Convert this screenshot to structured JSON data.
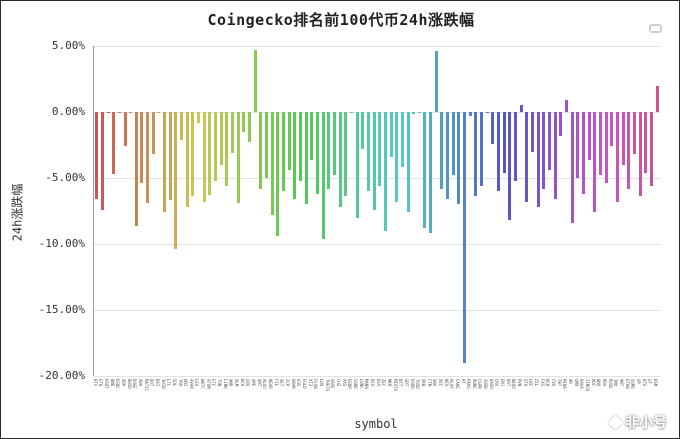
{
  "watermark": {
    "text": "非小号"
  },
  "legend": {
    "items": [
      ""
    ]
  },
  "chart_data": {
    "type": "bar",
    "title": "Coingecko排名前100代币24h涨跌幅",
    "xlabel": "symbol",
    "ylabel": "24h涨跌幅",
    "ylim": [
      -20,
      5
    ],
    "grid": true,
    "legend_position": "top-right",
    "palette": "rainbow hue 0-330 across 100 bars",
    "y_ticks": [
      "5.00%",
      "0.00%",
      "-5.00%",
      "-10.00%",
      "-15.00%",
      "-20.00%"
    ],
    "categories": [
      "BTC",
      "ETH",
      "USDT",
      "BNB",
      "USDC",
      "XRP",
      "BUSD",
      "DOGE",
      "ADA",
      "MATIC",
      "DOT",
      "DAI",
      "SHIB",
      "LTC",
      "SOL",
      "TRX",
      "UNI",
      "AVAX",
      "LEO",
      "WBTC",
      "ATOM",
      "ETC",
      "TON",
      "LINK",
      "XMR",
      "XLM",
      "BCH",
      "CRO",
      "APE",
      "QNT",
      "ALGO",
      "NEAR",
      "FIL",
      "VET",
      "ICP",
      "HBAR",
      "EOS",
      "EGLD",
      "XTZ",
      "FLOW",
      "LDO",
      "THETA",
      "AAVE",
      "CHZ",
      "AXS",
      "USDP",
      "SAND",
      "LUNC",
      "MANA",
      "KCS",
      "BSV",
      "ZEC",
      "MKR",
      "MIOTA",
      "BTT",
      "GRT",
      "USDD",
      "TUSD",
      "OKB",
      "FTM",
      "SNX",
      "XEC",
      "NEO",
      "KLAY",
      "CAKE",
      "HT",
      "PAXG",
      "RUNE",
      "CSPR",
      "GUSD",
      "DASH",
      "CRV",
      "ENJ",
      "BAT",
      "NEXO",
      "RVN",
      "STX",
      "LRC",
      "ZIL",
      "FXS",
      "DCR",
      "CVX",
      "TWT",
      "MINA",
      "AR",
      "GMX",
      "KAVA",
      "1INCH",
      "XDC",
      "BNX",
      "KDA",
      "ROSE",
      "IMX",
      "HNT",
      "ETHW",
      "OSMO",
      "OP",
      "BTG",
      "GT",
      "KSM"
    ],
    "values": [
      -6.6,
      -7.4,
      -0.05,
      -4.7,
      -0.04,
      -2.6,
      -0.06,
      -8.6,
      -5.4,
      -6.9,
      -3.2,
      -0.05,
      -7.6,
      -6.7,
      -10.4,
      -2.1,
      -7.2,
      -6.4,
      -0.8,
      -6.8,
      -6.3,
      -5.2,
      -4.0,
      -5.6,
      -3.1,
      -6.9,
      -1.5,
      -2.3,
      4.7,
      -5.8,
      -5.0,
      -7.8,
      -9.4,
      -6.0,
      -4.4,
      -6.6,
      -5.2,
      -7.0,
      -3.6,
      -6.2,
      -9.6,
      -5.8,
      -4.8,
      -7.2,
      -6.4,
      -0.1,
      -8.0,
      -2.8,
      -6.0,
      -7.4,
      -5.6,
      -9.0,
      -3.4,
      -6.8,
      -4.2,
      -7.6,
      -0.15,
      -0.03,
      -8.8,
      -9.2,
      4.6,
      -5.8,
      -6.6,
      -4.8,
      -7.0,
      -19.0,
      -0.3,
      -6.4,
      -5.6,
      -0.1,
      -2.4,
      -6.0,
      -4.6,
      -8.2,
      -5.2,
      0.5,
      -6.8,
      -3.0,
      -7.2,
      -5.8,
      -4.4,
      -6.6,
      -1.8,
      0.9,
      -8.4,
      -5.0,
      -6.2,
      -3.6,
      -7.6,
      -4.8,
      -5.4,
      -2.6,
      -6.8,
      -4.0,
      -5.8,
      -3.2,
      -6.4,
      -4.6,
      -5.6,
      2.0
    ]
  }
}
